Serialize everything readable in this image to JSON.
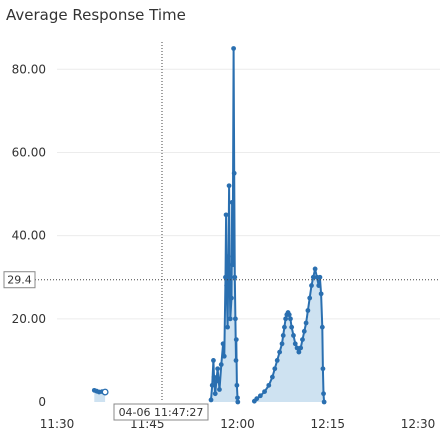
{
  "header": {
    "title": "Average Response Time"
  },
  "colors": {
    "series": "#2a6fb0",
    "fill": "#c9dff0",
    "grid": "#ececec",
    "crosshair": "#444444"
  },
  "chart_data": {
    "type": "area",
    "title": "Average Response Time",
    "xlabel": "",
    "ylabel": "",
    "xlim": [
      0,
      60
    ],
    "ylim": [
      0,
      88
    ],
    "x_ticks": [
      {
        "v": 0,
        "label": "11:30"
      },
      {
        "v": 15,
        "label": "11:45"
      },
      {
        "v": 30,
        "label": "12:00"
      },
      {
        "v": 45,
        "label": "12:15"
      },
      {
        "v": 60,
        "label": "12:30"
      }
    ],
    "y_ticks": [
      {
        "v": 0,
        "label": "0"
      },
      {
        "v": 20,
        "label": "20.00"
      },
      {
        "v": 40,
        "label": "40.00"
      },
      {
        "v": 60,
        "label": "60.00"
      },
      {
        "v": 80,
        "label": "80.00"
      }
    ],
    "crosshair": {
      "x": 17.45,
      "y": 29.4,
      "x_label": "04-06 11:47:27",
      "y_label": "29.4"
    },
    "segments": [
      [
        [
          6.2,
          2.8
        ],
        [
          6.6,
          2.6
        ],
        [
          7.0,
          2.4
        ],
        [
          7.5,
          2.5
        ],
        [
          8.0,
          2.4
        ]
      ],
      [
        [
          25.6,
          0.5
        ],
        [
          25.8,
          4
        ],
        [
          26.0,
          10
        ],
        [
          26.1,
          6
        ],
        [
          26.3,
          2
        ],
        [
          26.5,
          5
        ],
        [
          26.7,
          8
        ],
        [
          27.0,
          3
        ],
        [
          27.3,
          9
        ],
        [
          27.6,
          14
        ],
        [
          27.8,
          11
        ],
        [
          28.0,
          30
        ],
        [
          28.1,
          45
        ],
        [
          28.2,
          28
        ],
        [
          28.35,
          18
        ],
        [
          28.5,
          35
        ],
        [
          28.6,
          52
        ],
        [
          28.7,
          30
        ],
        [
          28.8,
          20
        ],
        [
          29.0,
          25
        ],
        [
          29.1,
          48
        ],
        [
          29.2,
          33
        ],
        [
          29.35,
          85
        ],
        [
          29.45,
          55
        ],
        [
          29.55,
          30
        ],
        [
          29.65,
          20
        ],
        [
          29.75,
          10
        ],
        [
          29.8,
          15
        ],
        [
          29.9,
          4
        ],
        [
          30.0,
          1
        ],
        [
          30.05,
          0
        ]
      ],
      [
        [
          32.8,
          0.2
        ],
        [
          33.2,
          0.8
        ],
        [
          33.8,
          1.5
        ],
        [
          34.5,
          2.5
        ],
        [
          35.2,
          4
        ],
        [
          35.8,
          6
        ],
        [
          36.2,
          8
        ],
        [
          36.6,
          10
        ],
        [
          37.0,
          12
        ],
        [
          37.4,
          14
        ],
        [
          37.6,
          16
        ],
        [
          37.8,
          18
        ],
        [
          38.0,
          20
        ],
        [
          38.2,
          21
        ],
        [
          38.4,
          21.5
        ],
        [
          38.6,
          21
        ],
        [
          38.8,
          20
        ],
        [
          39.0,
          18
        ],
        [
          39.3,
          16
        ],
        [
          39.6,
          14
        ],
        [
          39.9,
          13
        ],
        [
          40.2,
          12
        ],
        [
          40.5,
          13
        ],
        [
          40.8,
          15
        ],
        [
          41.1,
          17
        ],
        [
          41.4,
          19
        ],
        [
          41.7,
          22
        ],
        [
          42.0,
          25
        ],
        [
          42.3,
          28
        ],
        [
          42.6,
          30
        ],
        [
          42.9,
          32
        ],
        [
          43.2,
          30
        ],
        [
          43.5,
          28
        ],
        [
          43.7,
          30
        ],
        [
          43.9,
          26
        ],
        [
          44.1,
          18
        ],
        [
          44.2,
          8
        ],
        [
          44.3,
          2
        ],
        [
          44.4,
          0
        ]
      ]
    ]
  }
}
